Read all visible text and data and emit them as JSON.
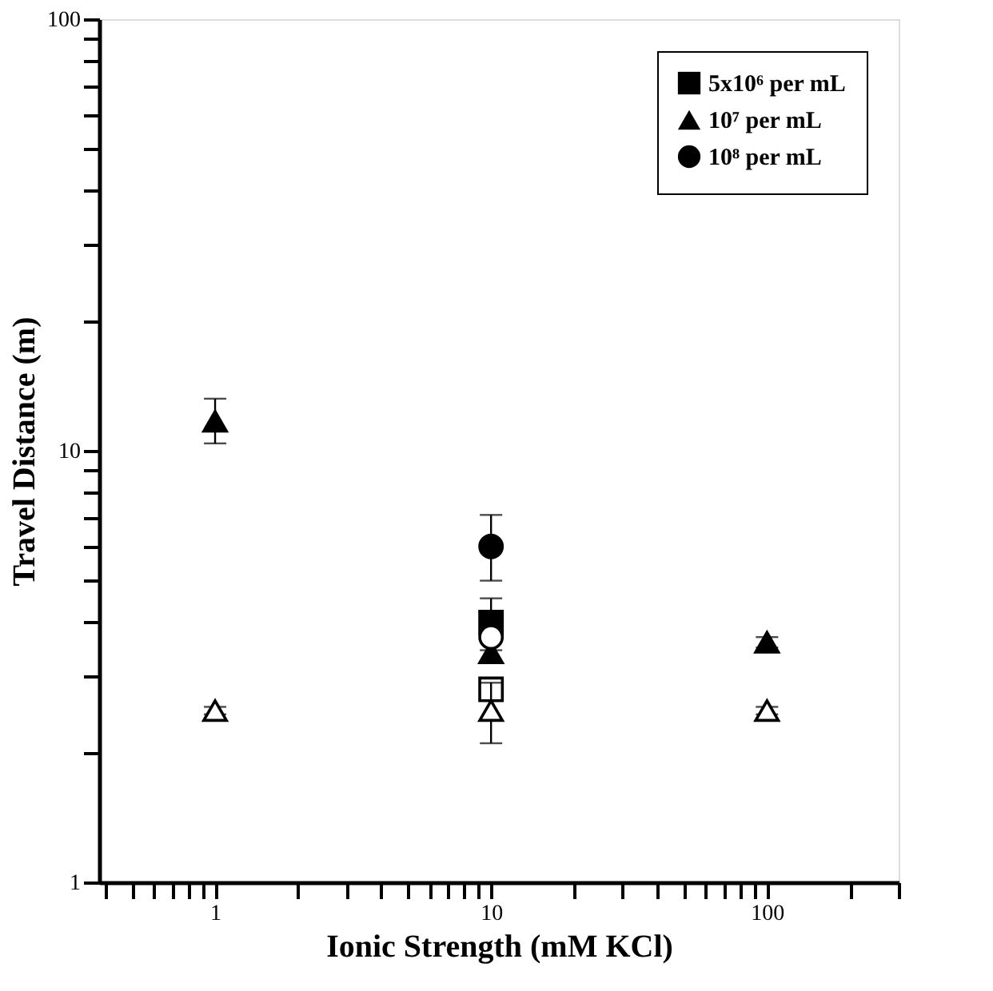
{
  "chart_data": {
    "type": "scatter",
    "xlabel": "Ionic Strength (mM KCl)",
    "ylabel": "Travel Distance (m)",
    "log": "xy",
    "legend": "top right",
    "grid": false,
    "xlim": [
      0.38,
      300
    ],
    "ylim": [
      1,
      100
    ],
    "xticks": [
      {
        "value": 0.4,
        "label": null
      },
      {
        "value": 0.5,
        "label": null
      },
      {
        "value": 0.6,
        "label": null
      },
      {
        "value": 0.7,
        "label": null
      },
      {
        "value": 0.8,
        "label": null
      },
      {
        "value": 0.9,
        "label": null
      },
      1,
      {
        "value": 2,
        "label": null
      },
      {
        "value": 3,
        "label": null
      },
      {
        "value": 4,
        "label": null
      },
      {
        "value": 5,
        "label": null
      },
      {
        "value": 6,
        "label": null
      },
      {
        "value": 7,
        "label": null
      },
      {
        "value": 8,
        "label": null
      },
      {
        "value": 9,
        "label": null
      },
      10,
      {
        "value": 20,
        "label": null
      },
      {
        "value": 30,
        "label": null
      },
      {
        "value": 40,
        "label": null
      },
      {
        "value": 50,
        "label": null
      },
      {
        "value": 60,
        "label": null
      },
      {
        "value": 70,
        "label": null
      },
      {
        "value": 80,
        "label": null
      },
      {
        "value": 90,
        "label": null
      },
      100,
      {
        "value": 200,
        "label": null
      },
      {
        "value": 300,
        "label": null
      }
    ],
    "yticks": [
      1,
      {
        "value": 2,
        "label": null
      },
      {
        "value": 3,
        "label": null
      },
      {
        "value": 4,
        "label": null
      },
      {
        "value": 5,
        "label": null
      },
      {
        "value": 6,
        "label": null
      },
      {
        "value": 7,
        "label": null
      },
      {
        "value": 8,
        "label": null
      },
      {
        "value": 9,
        "label": null
      },
      10,
      {
        "value": 20,
        "label": null
      },
      {
        "value": 30,
        "label": null
      },
      {
        "value": 40,
        "label": null
      },
      {
        "value": 50,
        "label": null
      },
      {
        "value": 60,
        "label": null
      },
      {
        "value": 70,
        "label": null
      },
      {
        "value": 80,
        "label": null
      },
      {
        "value": 90,
        "label": null
      },
      100
    ],
    "series": [
      {
        "name": "5x10⁶ per mL",
        "color": "#000000",
        "marker": "square",
        "x": [
          10
        ],
        "values": [
          4.0
        ],
        "errors": [
          0.55
        ]
      },
      {
        "name": "10⁷ per mL",
        "color": "#000000",
        "marker": "triangle",
        "x": [
          1,
          10,
          100
        ],
        "values": [
          11.7,
          3.4,
          3.6
        ],
        "errors": [
          [
            10.4,
            13.2
          ],
          null,
          0.1
        ]
      },
      {
        "name": "10⁸ per mL",
        "color": "#000000",
        "marker": "circle",
        "x": [
          10
        ],
        "values": [
          6.0
        ],
        "errors": [
          [
            5.0,
            7.1
          ]
        ]
      },
      {
        "color": "#ffffff",
        "marker": "square",
        "x": [
          10
        ],
        "values": [
          2.8
        ]
      },
      {
        "color": "#ffffff",
        "marker": "triangle",
        "x": [
          1,
          10,
          100
        ],
        "values": [
          2.5,
          2.5,
          2.5
        ],
        "errors": [
          0.05,
          [
            2.1,
            2.9
          ],
          0.05
        ]
      },
      {
        "color": "#ffffff",
        "marker": "circle",
        "x": [
          10
        ],
        "values": [
          3.7
        ]
      }
    ]
  }
}
